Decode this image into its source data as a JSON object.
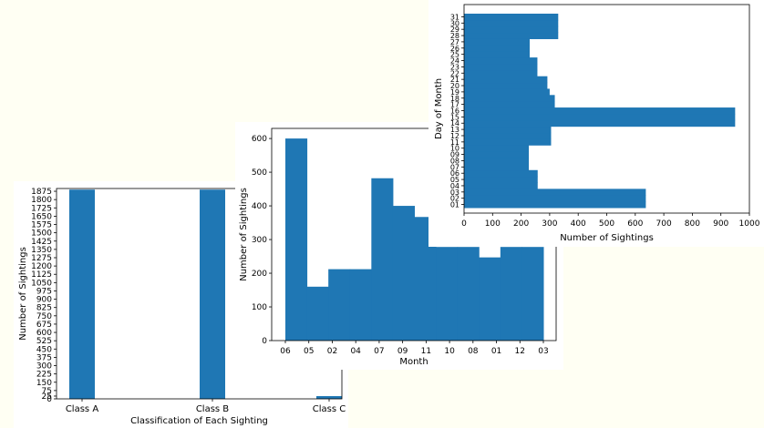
{
  "chart_data": [
    {
      "type": "bar",
      "xlabel": "Classification of Each Sighting",
      "ylabel": "Number of Sightings",
      "categories": [
        "Class A",
        "Class B",
        "Class C"
      ],
      "values": [
        1890,
        1890,
        25
      ],
      "ylim": [
        0,
        1900
      ],
      "yticks": [
        "0",
        "25",
        "75",
        "150",
        "225",
        "300",
        "375",
        "450",
        "525",
        "600",
        "675",
        "750",
        "825",
        "900",
        "975",
        "1050",
        "1125",
        "1200",
        "1275",
        "1350",
        "1425",
        "1500",
        "1575",
        "1650",
        "1725",
        "1800",
        "1875"
      ],
      "color": "#1f77b4"
    },
    {
      "type": "bar",
      "xlabel": "Month",
      "ylabel": "Number of Sightings",
      "categories": [
        "06",
        "05",
        "02",
        "04",
        "07",
        "09",
        "11",
        "10",
        "08",
        "01",
        "12",
        "03"
      ],
      "values": [
        600,
        160,
        212,
        212,
        482,
        400,
        367,
        278,
        278,
        247,
        278,
        278
      ],
      "ylim": [
        0,
        630
      ],
      "yticks": [
        "0",
        "100",
        "200",
        "300",
        "400",
        "500",
        "600"
      ],
      "color": "#1f77b4"
    },
    {
      "type": "bar",
      "orientation": "horizontal",
      "xlabel": "Number of Sightings",
      "ylabel": "Day of Month",
      "categories": [
        "01",
        "02",
        "03",
        "04",
        "05",
        "06",
        "07",
        "08",
        "09",
        "10",
        "11",
        "12",
        "13",
        "14",
        "15",
        "16",
        "17",
        "18",
        "19",
        "20",
        "21",
        "22",
        "23",
        "24",
        "25",
        "26",
        "27",
        "28",
        "29",
        "30",
        "31"
      ],
      "values": [
        637,
        637,
        637,
        258,
        258,
        258,
        227,
        227,
        227,
        227,
        305,
        305,
        305,
        950,
        950,
        950,
        318,
        318,
        300,
        292,
        292,
        257,
        257,
        257,
        230,
        230,
        230,
        330,
        330,
        330,
        330
      ],
      "xlim": [
        0,
        1000
      ],
      "xticks": [
        "0",
        "100",
        "200",
        "300",
        "400",
        "500",
        "600",
        "700",
        "800",
        "900",
        "1000"
      ],
      "color": "#1f77b4"
    }
  ]
}
